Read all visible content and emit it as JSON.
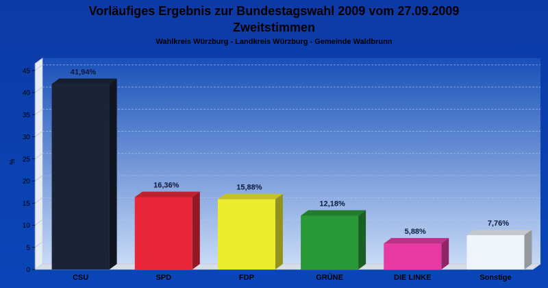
{
  "chart_data": {
    "type": "bar",
    "title": "Vorläufiges Ergebnis zur Bundestagswahl 2009 vom 27.09.2009",
    "title2": "Zweitstimmen",
    "subtitle": "Wahlkreis Würzburg - Landkreis Würzburg - Gemeinde Waldbrunn",
    "ylabel": "%",
    "xlabel": "",
    "ylim": [
      0,
      45
    ],
    "yticks": [
      0,
      5,
      10,
      15,
      20,
      25,
      30,
      35,
      40,
      45
    ],
    "categories": [
      "CSU",
      "SPD",
      "FDP",
      "GRÜNE",
      "DIE LINKE",
      "Sonstige"
    ],
    "values": [
      41.94,
      16.36,
      15.88,
      12.18,
      5.88,
      7.76
    ],
    "data_labels": [
      "41,94%",
      "16,36%",
      "15,88%",
      "12,18%",
      "5,88%",
      "7,76%"
    ],
    "colors": [
      "#1a2436",
      "#e8283a",
      "#ecec2e",
      "#2a9a38",
      "#e83aa4",
      "#eef4fc"
    ],
    "grid": true,
    "legend": "none"
  }
}
